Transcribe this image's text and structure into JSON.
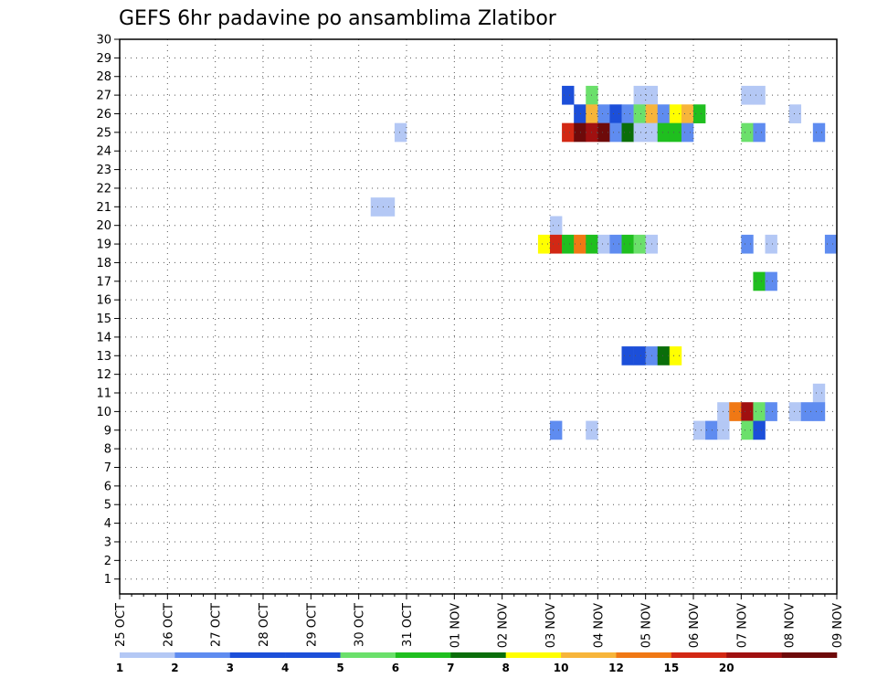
{
  "chart_data": {
    "type": "heatmap",
    "title": "GEFS 6hr padavine po ansamblima Zlatibor",
    "xlabel": "",
    "ylabel": "",
    "x_ticks": [
      "25 OCT",
      "26 OCT",
      "27 OCT",
      "28 OCT",
      "29 OCT",
      "30 OCT",
      "31 OCT",
      "01 NOV",
      "02 NOV",
      "03 NOV",
      "04 NOV",
      "05 NOV",
      "06 NOV",
      "07 NOV",
      "08 NOV",
      "09 NOV"
    ],
    "x_range_steps": [
      0,
      60
    ],
    "y_ticks": [
      1,
      2,
      3,
      4,
      5,
      6,
      7,
      8,
      9,
      10,
      11,
      12,
      13,
      14,
      15,
      16,
      17,
      18,
      19,
      20,
      21,
      22,
      23,
      24,
      25,
      26,
      27,
      28,
      29,
      30
    ],
    "ylim": [
      0.2,
      30
    ],
    "grid": true,
    "colorbar": {
      "labels": [
        "1",
        "2",
        "3",
        "4",
        "5",
        "6",
        "7",
        "8",
        "10",
        "12",
        "15",
        "20"
      ],
      "colors": [
        "#b4c8f5",
        "#5f8cf0",
        "#1c4fd9",
        "#1c4fd9",
        "#6be06b",
        "#1fbf1f",
        "#0a6e0a",
        "#ffff00",
        "#f7b53a",
        "#f07814",
        "#d22814",
        "#a01010",
        "#6e0a0a"
      ]
    },
    "cells": [
      {
        "t": 38,
        "m": 27,
        "c": "#1c4fd9"
      },
      {
        "t": 40,
        "m": 27,
        "c": "#6be06b"
      },
      {
        "t": 44,
        "m": 27,
        "c": "#b4c8f5"
      },
      {
        "t": 45,
        "m": 27,
        "c": "#b4c8f5"
      },
      {
        "t": 53,
        "m": 27,
        "c": "#b4c8f5"
      },
      {
        "t": 54,
        "m": 27,
        "c": "#b4c8f5"
      },
      {
        "t": 39,
        "m": 26,
        "c": "#1c4fd9"
      },
      {
        "t": 40,
        "m": 26,
        "c": "#f7b53a"
      },
      {
        "t": 41,
        "m": 26,
        "c": "#5f8cf0"
      },
      {
        "t": 42,
        "m": 26,
        "c": "#1c4fd9"
      },
      {
        "t": 43,
        "m": 26,
        "c": "#5f8cf0"
      },
      {
        "t": 44,
        "m": 26,
        "c": "#6be06b"
      },
      {
        "t": 45,
        "m": 26,
        "c": "#f7b53a"
      },
      {
        "t": 46,
        "m": 26,
        "c": "#5f8cf0"
      },
      {
        "t": 47,
        "m": 26,
        "c": "#ffff00"
      },
      {
        "t": 48,
        "m": 26,
        "c": "#f7b53a"
      },
      {
        "t": 49,
        "m": 26,
        "c": "#1fbf1f"
      },
      {
        "t": 57,
        "m": 26,
        "c": "#b4c8f5"
      },
      {
        "t": 24,
        "m": 25,
        "c": "#b4c8f5"
      },
      {
        "t": 38,
        "m": 25,
        "c": "#d22814"
      },
      {
        "t": 39,
        "m": 25,
        "c": "#6e0a0a"
      },
      {
        "t": 40,
        "m": 25,
        "c": "#a01010"
      },
      {
        "t": 41,
        "m": 25,
        "c": "#6e0a0a"
      },
      {
        "t": 42,
        "m": 25,
        "c": "#5f8cf0"
      },
      {
        "t": 43,
        "m": 25,
        "c": "#0a6e0a"
      },
      {
        "t": 44,
        "m": 25,
        "c": "#b4c8f5"
      },
      {
        "t": 45,
        "m": 25,
        "c": "#b4c8f5"
      },
      {
        "t": 46,
        "m": 25,
        "c": "#1fbf1f"
      },
      {
        "t": 47,
        "m": 25,
        "c": "#1fbf1f"
      },
      {
        "t": 48,
        "m": 25,
        "c": "#5f8cf0"
      },
      {
        "t": 53,
        "m": 25,
        "c": "#6be06b"
      },
      {
        "t": 54,
        "m": 25,
        "c": "#5f8cf0"
      },
      {
        "t": 59,
        "m": 25,
        "c": "#5f8cf0"
      },
      {
        "t": 22,
        "m": 21,
        "c": "#b4c8f5"
      },
      {
        "t": 23,
        "m": 21,
        "c": "#b4c8f5"
      },
      {
        "t": 37,
        "m": 20,
        "c": "#b4c8f5"
      },
      {
        "t": 36,
        "m": 19,
        "c": "#ffff00"
      },
      {
        "t": 37,
        "m": 19,
        "c": "#d22814"
      },
      {
        "t": 38,
        "m": 19,
        "c": "#1fbf1f"
      },
      {
        "t": 39,
        "m": 19,
        "c": "#f07814"
      },
      {
        "t": 40,
        "m": 19,
        "c": "#1fbf1f"
      },
      {
        "t": 41,
        "m": 19,
        "c": "#b4c8f5"
      },
      {
        "t": 42,
        "m": 19,
        "c": "#5f8cf0"
      },
      {
        "t": 43,
        "m": 19,
        "c": "#1fbf1f"
      },
      {
        "t": 44,
        "m": 19,
        "c": "#6be06b"
      },
      {
        "t": 45,
        "m": 19,
        "c": "#b4c8f5"
      },
      {
        "t": 53,
        "m": 19,
        "c": "#5f8cf0"
      },
      {
        "t": 55,
        "m": 19,
        "c": "#b4c8f5"
      },
      {
        "t": 60,
        "m": 19,
        "c": "#5f8cf0"
      },
      {
        "t": 54,
        "m": 17,
        "c": "#1fbf1f"
      },
      {
        "t": 55,
        "m": 17,
        "c": "#5f8cf0"
      },
      {
        "t": 43,
        "m": 13,
        "c": "#1c4fd9"
      },
      {
        "t": 44,
        "m": 13,
        "c": "#1c4fd9"
      },
      {
        "t": 45,
        "m": 13,
        "c": "#5f8cf0"
      },
      {
        "t": 46,
        "m": 13,
        "c": "#0a6e0a"
      },
      {
        "t": 47,
        "m": 13,
        "c": "#ffff00"
      },
      {
        "t": 59,
        "m": 11,
        "c": "#b4c8f5"
      },
      {
        "t": 51,
        "m": 10,
        "c": "#b4c8f5"
      },
      {
        "t": 52,
        "m": 10,
        "c": "#f07814"
      },
      {
        "t": 53,
        "m": 10,
        "c": "#a01010"
      },
      {
        "t": 54,
        "m": 10,
        "c": "#6be06b"
      },
      {
        "t": 55,
        "m": 10,
        "c": "#5f8cf0"
      },
      {
        "t": 57,
        "m": 10,
        "c": "#b4c8f5"
      },
      {
        "t": 58,
        "m": 10,
        "c": "#5f8cf0"
      },
      {
        "t": 59,
        "m": 10,
        "c": "#5f8cf0"
      },
      {
        "t": 37,
        "m": 9,
        "c": "#5f8cf0"
      },
      {
        "t": 40,
        "m": 9,
        "c": "#b4c8f5"
      },
      {
        "t": 49,
        "m": 9,
        "c": "#b4c8f5"
      },
      {
        "t": 50,
        "m": 9,
        "c": "#5f8cf0"
      },
      {
        "t": 51,
        "m": 9,
        "c": "#b4c8f5"
      },
      {
        "t": 53,
        "m": 9,
        "c": "#6be06b"
      },
      {
        "t": 54,
        "m": 9,
        "c": "#1c4fd9"
      }
    ]
  }
}
